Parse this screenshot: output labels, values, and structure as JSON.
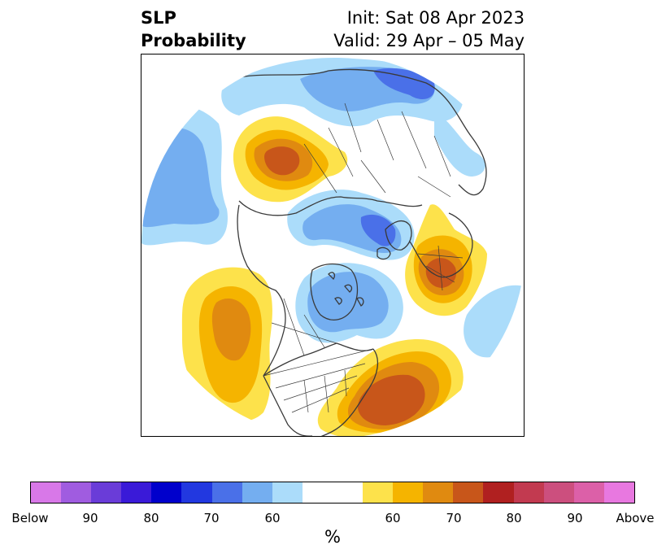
{
  "title": {
    "left_line1": "SLP",
    "left_line2": "Probability",
    "right_line1": "Init: Sat 08 Apr 2023",
    "right_line2": "Valid: 29 Apr – 05 May"
  },
  "map": {
    "projection": "north-polar-stereographic",
    "land_outline_color": "#3a3a3a",
    "background": "#ffffff"
  },
  "colorbar": {
    "colors": [
      "#d878e8",
      "#a05ce0",
      "#6a3cd8",
      "#3a1ad8",
      "#0000cc",
      "#2238e0",
      "#4a70e8",
      "#74aef0",
      "#abdcfa",
      "#ffffff",
      "#ffffff",
      "#fde24b",
      "#f5b400",
      "#e08a10",
      "#c8561a",
      "#b02020",
      "#c23a50",
      "#cc4f7e",
      "#dc60a8",
      "#e878e0"
    ],
    "tick_labels": [
      "Below",
      "90",
      "80",
      "70",
      "60",
      "60",
      "70",
      "80",
      "90",
      "Above"
    ],
    "unit_label": "%"
  }
}
